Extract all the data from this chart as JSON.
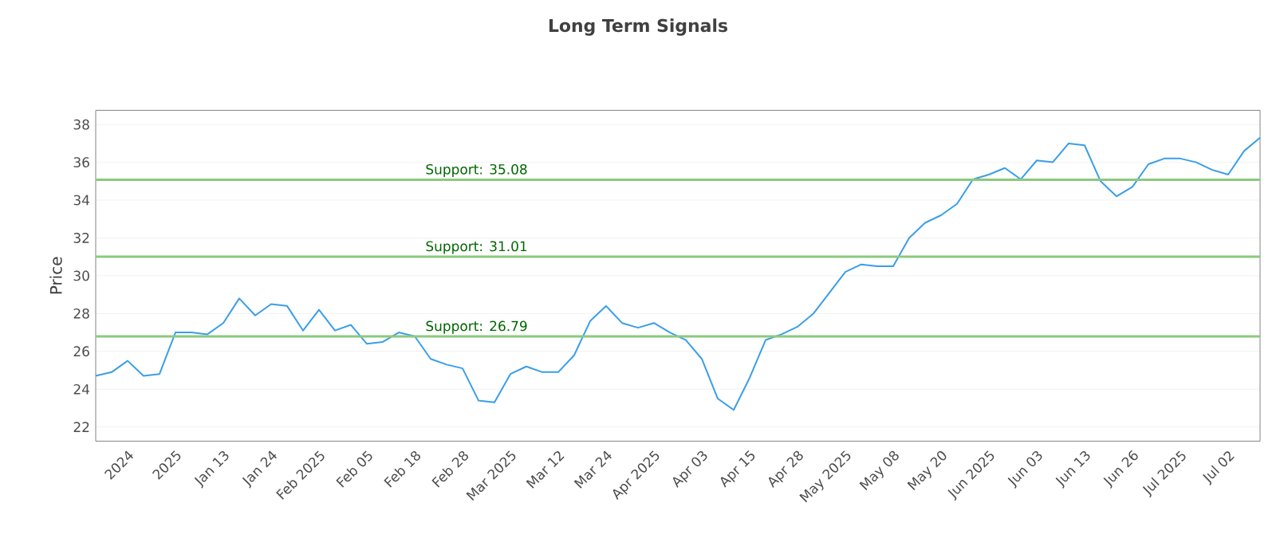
{
  "chart_data": {
    "type": "line",
    "title": "Long Term Signals",
    "ylabel": "Price",
    "categories": [
      null,
      null,
      "2024",
      null,
      null,
      "2025",
      null,
      null,
      "Jan 13",
      null,
      null,
      "Jan 24",
      null,
      null,
      "Feb 2025",
      null,
      null,
      "Feb 05",
      null,
      null,
      "Feb 18",
      null,
      null,
      "Feb 28",
      null,
      null,
      "Mar 2025",
      null,
      null,
      "Mar 12",
      null,
      null,
      "Mar 24",
      null,
      null,
      "Apr 2025",
      null,
      null,
      "Apr 03",
      null,
      null,
      "Apr 15",
      null,
      null,
      "Apr 28",
      null,
      null,
      "May 2025",
      null,
      null,
      "May 08",
      null,
      null,
      "May 20",
      null,
      null,
      "Jun 2025",
      null,
      null,
      "Jun 03",
      null,
      null,
      "Jun 13",
      null,
      null,
      "Jun 26",
      null,
      null,
      "Jul 2025",
      null,
      null,
      "Jul 02",
      null,
      null
    ],
    "series": [
      {
        "color": "#3a9ee8",
        "values": [
          24.7,
          24.9,
          25.5,
          24.7,
          24.8,
          27.0,
          27.0,
          26.9,
          27.5,
          28.8,
          27.9,
          28.5,
          28.4,
          27.1,
          28.2,
          27.1,
          27.4,
          26.4,
          26.5,
          27.0,
          26.8,
          25.6,
          25.3,
          25.1,
          23.4,
          23.3,
          24.8,
          25.2,
          24.9,
          24.9,
          25.8,
          27.6,
          28.4,
          27.5,
          27.25,
          27.5,
          27.0,
          26.6,
          25.6,
          23.5,
          22.9,
          24.6,
          26.6,
          26.9,
          27.3,
          28.0,
          29.1,
          30.2,
          30.6,
          30.5,
          30.5,
          32.0,
          32.8,
          33.2,
          33.8,
          35.1,
          35.35,
          35.7,
          35.1,
          36.1,
          36.0,
          37.0,
          36.9,
          35.0,
          34.2,
          34.7,
          35.9,
          36.2,
          36.2,
          36.0,
          35.6,
          35.35,
          36.6,
          37.3
        ]
      }
    ],
    "ylim": [
      21.25,
      38.75
    ],
    "yticks": [
      22,
      24,
      26,
      28,
      30,
      32,
      34,
      36,
      38
    ],
    "grid": "y",
    "line_style": "solid",
    "ref_lines": [
      {
        "axis": "y",
        "value": 35.08,
        "label": "Support: 35.08",
        "color": "#8cc97e"
      },
      {
        "axis": "y",
        "value": 31.01,
        "label": "Support: 31.01",
        "color": "#8cc97e"
      },
      {
        "axis": "y",
        "value": 26.79,
        "label": "Support: 26.79",
        "color": "#8cc97e"
      }
    ]
  }
}
